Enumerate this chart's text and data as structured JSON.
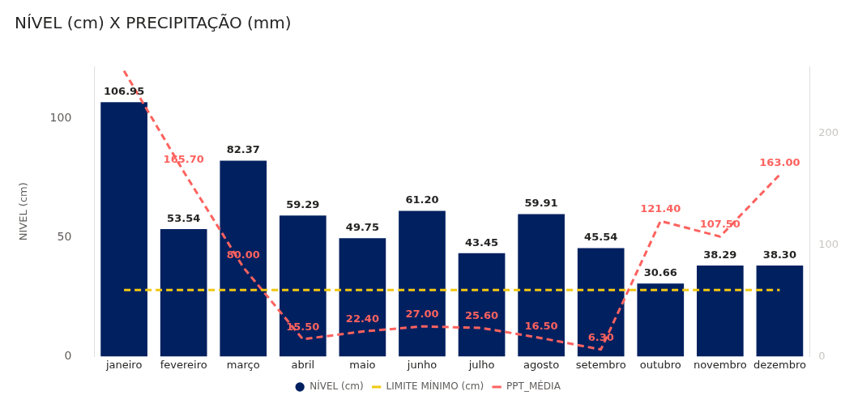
{
  "chart_data": {
    "type": "bar",
    "title": "NÍVEL (cm) X PRECIPITAÇÃO (mm)",
    "ylabel": "NIVEL (cm)",
    "categories": [
      "janeiro",
      "fevereiro",
      "março",
      "abril",
      "maio",
      "junho",
      "julho",
      "agosto",
      "setembro",
      "outubro",
      "novembro",
      "dezembro"
    ],
    "series": [
      {
        "name": "NÍVEL (cm)",
        "color": "#002060",
        "values": [
          106.95,
          53.54,
          82.37,
          59.29,
          49.75,
          61.2,
          43.45,
          59.91,
          45.54,
          30.66,
          38.29,
          38.3
        ],
        "value_labels": [
          "106.95",
          "53.54",
          "82.37",
          "59.29",
          "49.75",
          "61.20",
          "43.45",
          "59.91",
          "45.54",
          "30.66",
          "38.29",
          "38.30"
        ]
      },
      {
        "name": "LIMITE MÍNIMO (cm)",
        "type": "line",
        "color": "#f2c811",
        "line_style": "dashed",
        "values": [
          28,
          28,
          28,
          28,
          28,
          28,
          28,
          28,
          28,
          28,
          28,
          28
        ]
      },
      {
        "name": "PPT_MÉDIA",
        "type": "line",
        "axis": "y2",
        "color": "#fd625e",
        "line_style": "dashed",
        "values": [
          256,
          165.7,
          80.0,
          15.5,
          22.4,
          27.0,
          25.6,
          16.5,
          6.3,
          121.4,
          107.5,
          163.0
        ],
        "value_labels": [
          null,
          "165.70",
          "80.00",
          "15.50",
          "22.40",
          "27.00",
          "25.60",
          "16.50",
          "6.30",
          "121.40",
          "107.50",
          "163.00"
        ]
      }
    ],
    "ylim": [
      0,
      122
    ],
    "yticks": [
      0,
      50,
      100
    ],
    "y2lim": [
      0,
      260
    ],
    "y2ticks": [
      0,
      100,
      200
    ],
    "grid": false,
    "legend": "bottom",
    "marker": "none"
  }
}
